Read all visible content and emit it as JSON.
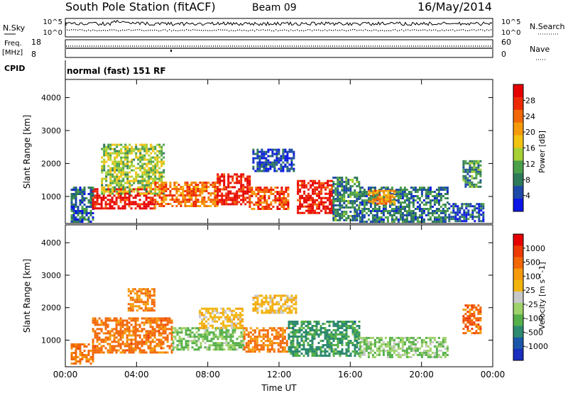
{
  "header": {
    "station": "South Pole Station (fitACF)",
    "beam": "Beam 09",
    "date": "16/May/2014"
  },
  "top_panels": {
    "nsky_label": "N.Sky",
    "nsearch_label": "N.Search",
    "nsky_ticks": [
      "10^5",
      "10^0"
    ],
    "nsearch_ticks": [
      "10^5",
      "10^0"
    ],
    "freq_label": "Freq.",
    "freq_unit": "[MHz]",
    "freq_ticks": [
      "18",
      "8"
    ],
    "nave_label": "Nave",
    "nave_ticks": [
      "60",
      "0"
    ],
    "cpid_label": "CPID",
    "cpid_value": "normal (fast) 151 RF"
  },
  "chart_data": [
    {
      "type": "heatmap",
      "quantity": "power",
      "xlabel": "",
      "ylabel": "Slant Range [km]",
      "x_ticks": [
        "00:00",
        "04:00",
        "08:00",
        "12:00",
        "16:00",
        "20:00",
        "00:00"
      ],
      "y_ticks": [
        "1000",
        "2000",
        "3000",
        "4000"
      ],
      "xlim": [
        0,
        24
      ],
      "ylim": [
        180,
        4550
      ],
      "colorbar": {
        "label": "Power [dB]",
        "ticks": [
          "4",
          "8",
          "12",
          "16",
          "20",
          "24",
          "28"
        ],
        "range": [
          0,
          30
        ],
        "colors": [
          "#0b16e6",
          "#1d49a8",
          "#2f7a5a",
          "#4ca04b",
          "#a6d034",
          "#f2c313",
          "#f59a0c",
          "#f26708",
          "#ee2a05",
          "#e60000"
        ]
      },
      "regions": [
        {
          "t0": 0.3,
          "t1": 1.5,
          "r0": 250,
          "r1": 1300,
          "v": 6
        },
        {
          "t0": 1.5,
          "t1": 5.0,
          "r0": 650,
          "r1": 1250,
          "v": 28
        },
        {
          "t0": 2.0,
          "t1": 5.5,
          "r0": 1100,
          "r1": 2600,
          "v": 13
        },
        {
          "t0": 5.0,
          "t1": 8.5,
          "r0": 700,
          "r1": 1450,
          "v": 22
        },
        {
          "t0": 8.5,
          "t1": 10.3,
          "r0": 750,
          "r1": 1700,
          "v": 28
        },
        {
          "t0": 10.3,
          "t1": 12.5,
          "r0": 650,
          "r1": 1300,
          "v": 24
        },
        {
          "t0": 10.5,
          "t1": 12.8,
          "r0": 1800,
          "r1": 2450,
          "v": 4
        },
        {
          "t0": 13.0,
          "t1": 15.0,
          "r0": 500,
          "r1": 1500,
          "v": 28
        },
        {
          "t0": 15.0,
          "t1": 16.5,
          "r0": 300,
          "r1": 1600,
          "v": 8
        },
        {
          "t0": 16.5,
          "t1": 21.5,
          "r0": 250,
          "r1": 1300,
          "v": 7
        },
        {
          "t0": 17.0,
          "t1": 18.5,
          "r0": 750,
          "r1": 1200,
          "v": 20
        },
        {
          "t0": 21.5,
          "t1": 23.5,
          "r0": 250,
          "r1": 800,
          "v": 5
        },
        {
          "t0": 22.3,
          "t1": 23.3,
          "r0": 1300,
          "r1": 2100,
          "v": 9
        }
      ]
    },
    {
      "type": "heatmap",
      "quantity": "velocity",
      "xlabel": "Time UT",
      "ylabel": "Slant Range [km]",
      "x_ticks": [
        "00:00",
        "04:00",
        "08:00",
        "12:00",
        "16:00",
        "20:00",
        "00:00"
      ],
      "y_ticks": [
        "1000",
        "2000",
        "3000",
        "4000"
      ],
      "xlim": [
        0,
        24
      ],
      "ylim": [
        180,
        4550
      ],
      "colorbar": {
        "label": "Velocity [m s^-1]",
        "ticks": [
          "1000",
          "500",
          "100",
          "25",
          "-25",
          "-100",
          "-500",
          "-1000"
        ],
        "colors": [
          "#1a2ec0",
          "#1a57a8",
          "#2e8a70",
          "#56b04a",
          "#9fd26a",
          "#c8c8c8",
          "#f2b40e",
          "#f59a0c",
          "#f26708",
          "#ee3a05",
          "#e60000"
        ]
      },
      "regions": [
        {
          "t0": 0.3,
          "t1": 1.5,
          "r0": 250,
          "r1": 900,
          "v": -150
        },
        {
          "t0": 1.5,
          "t1": 6.0,
          "r0": 600,
          "r1": 1700,
          "v": -150
        },
        {
          "t0": 3.5,
          "t1": 5.0,
          "r0": 1900,
          "r1": 2600,
          "v": -100
        },
        {
          "t0": 6.0,
          "t1": 10.0,
          "r0": 700,
          "r1": 1400,
          "v": 120
        },
        {
          "t0": 7.5,
          "t1": 10.0,
          "r0": 1400,
          "r1": 2000,
          "v": 0
        },
        {
          "t0": 10.0,
          "t1": 12.5,
          "r0": 650,
          "r1": 1400,
          "v": -120
        },
        {
          "t0": 10.5,
          "t1": 13.0,
          "r0": 1850,
          "r1": 2400,
          "v": 0
        },
        {
          "t0": 12.5,
          "t1": 16.5,
          "r0": 500,
          "r1": 1600,
          "v": 300
        },
        {
          "t0": 16.5,
          "t1": 21.5,
          "r0": 450,
          "r1": 1100,
          "v": 100
        },
        {
          "t0": 22.3,
          "t1": 23.3,
          "r0": 1200,
          "r1": 2100,
          "v": -200
        }
      ]
    }
  ]
}
